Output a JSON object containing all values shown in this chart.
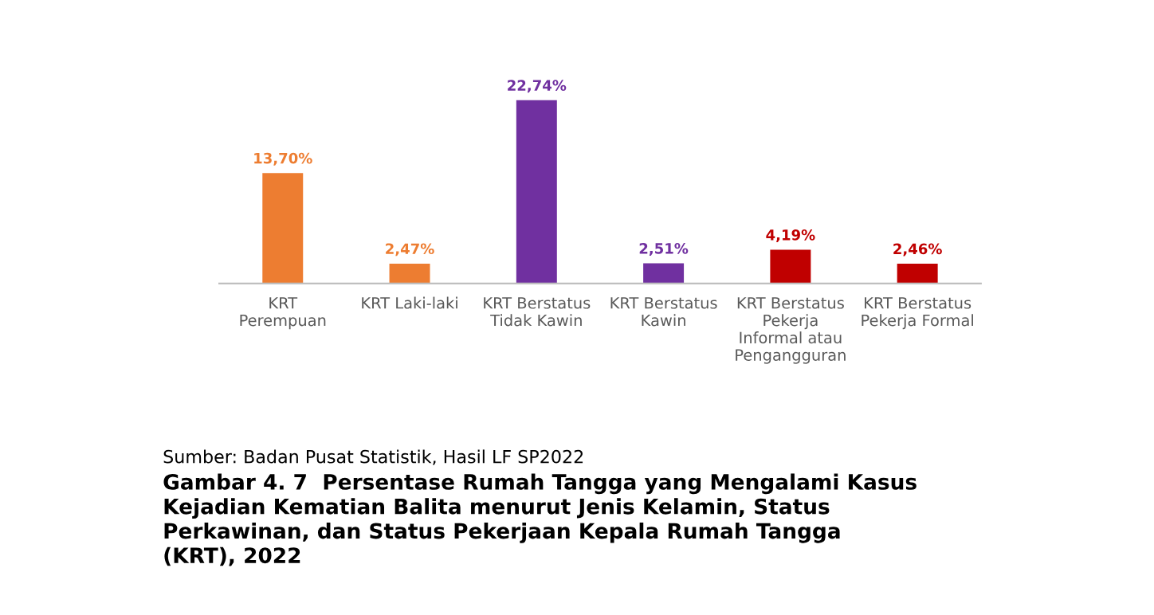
{
  "chart_data": {
    "type": "bar",
    "title": "Gambar 4. 7  Persentase Rumah Tangga yang Mengalami Kasus\nKejadian Kematian Balita menurut Jenis Kelamin, Status\nPerkawinan, dan Status Pekerjaan Kepala Rumah Tangga\n(KRT), 2022",
    "categories": [
      "KRT\nPerempuan",
      "KRT Laki-laki",
      "KRT Berstatus\nTidak Kawin",
      "KRT Berstatus\nKawin",
      "KRT Berstatus\nPekerja\nInformal atau\nPengangguran",
      "KRT Berstatus\nPekerja Formal"
    ],
    "values": [
      13.7,
      2.47,
      22.74,
      2.51,
      4.19,
      2.46
    ],
    "value_labels": [
      "13,70%",
      "2,47%",
      "22,74%",
      "2,51%",
      "4,19%",
      "2,46%"
    ],
    "colors": [
      "#ed7d31",
      "#ed7d31",
      "#7030a0",
      "#7030a0",
      "#c00000",
      "#c00000"
    ],
    "annotations": [
      "Sumber: Badan Pusat Statistik, Hasil LF SP2022"
    ],
    "grid": false,
    "legend": false
  }
}
